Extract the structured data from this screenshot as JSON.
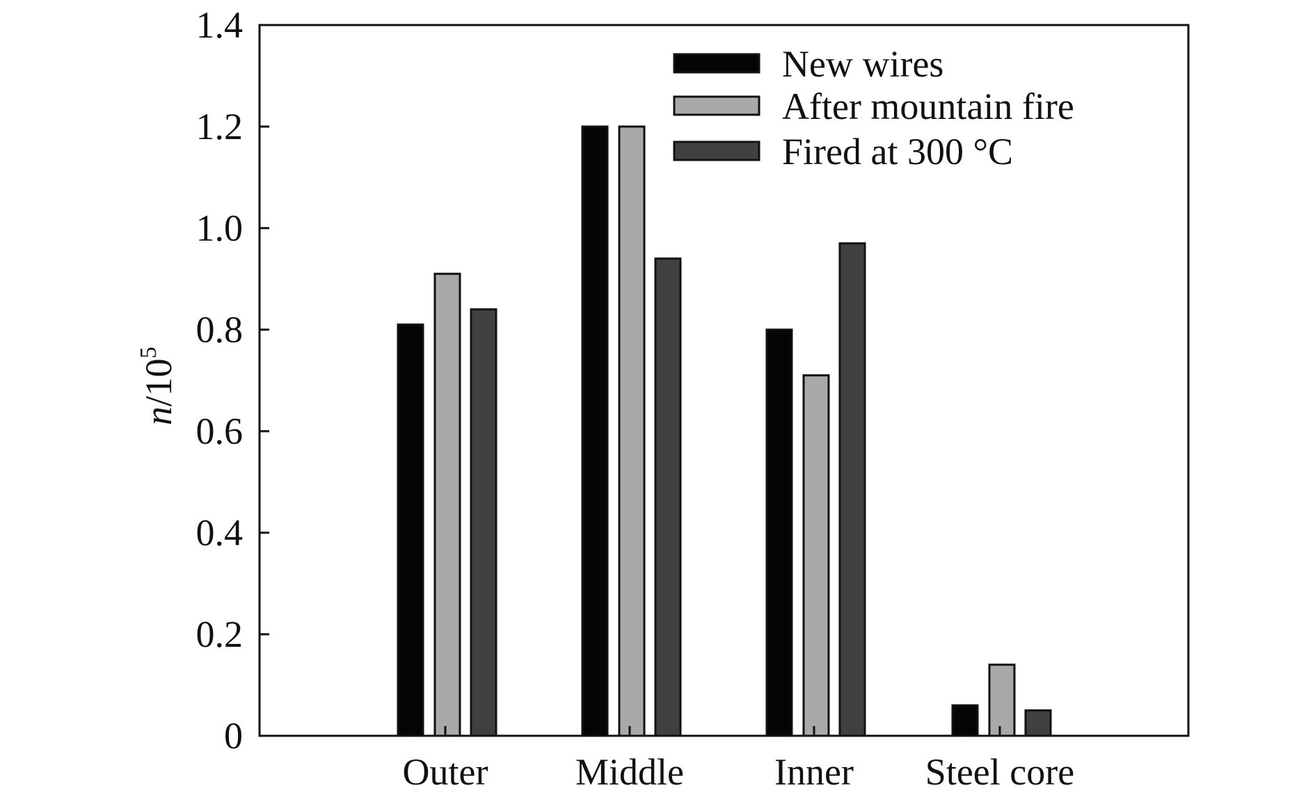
{
  "chart_data": {
    "type": "bar",
    "title": "",
    "xlabel": "",
    "ylabel": {
      "italic": "n",
      "base": "/10",
      "sup": "5"
    },
    "categories": [
      "Outer",
      "Middle",
      "Inner",
      "Steel core"
    ],
    "series": [
      {
        "name": "New wires",
        "color": "#050505",
        "values": [
          0.81,
          1.2,
          0.8,
          0.06
        ]
      },
      {
        "name": "After mountain fire",
        "color": "#a9a9a9",
        "values": [
          0.91,
          1.2,
          0.71,
          0.14
        ]
      },
      {
        "name": "Fired at 300 °C",
        "color": "#404040",
        "values": [
          0.84,
          0.94,
          0.97,
          0.05
        ]
      }
    ],
    "ylim": [
      0,
      1.4
    ],
    "yticks": [
      "0",
      "0.2",
      "0.4",
      "0.6",
      "0.8",
      "1.0",
      "1.2",
      "1.4"
    ],
    "grid": false,
    "legend_position": "top-right"
  }
}
